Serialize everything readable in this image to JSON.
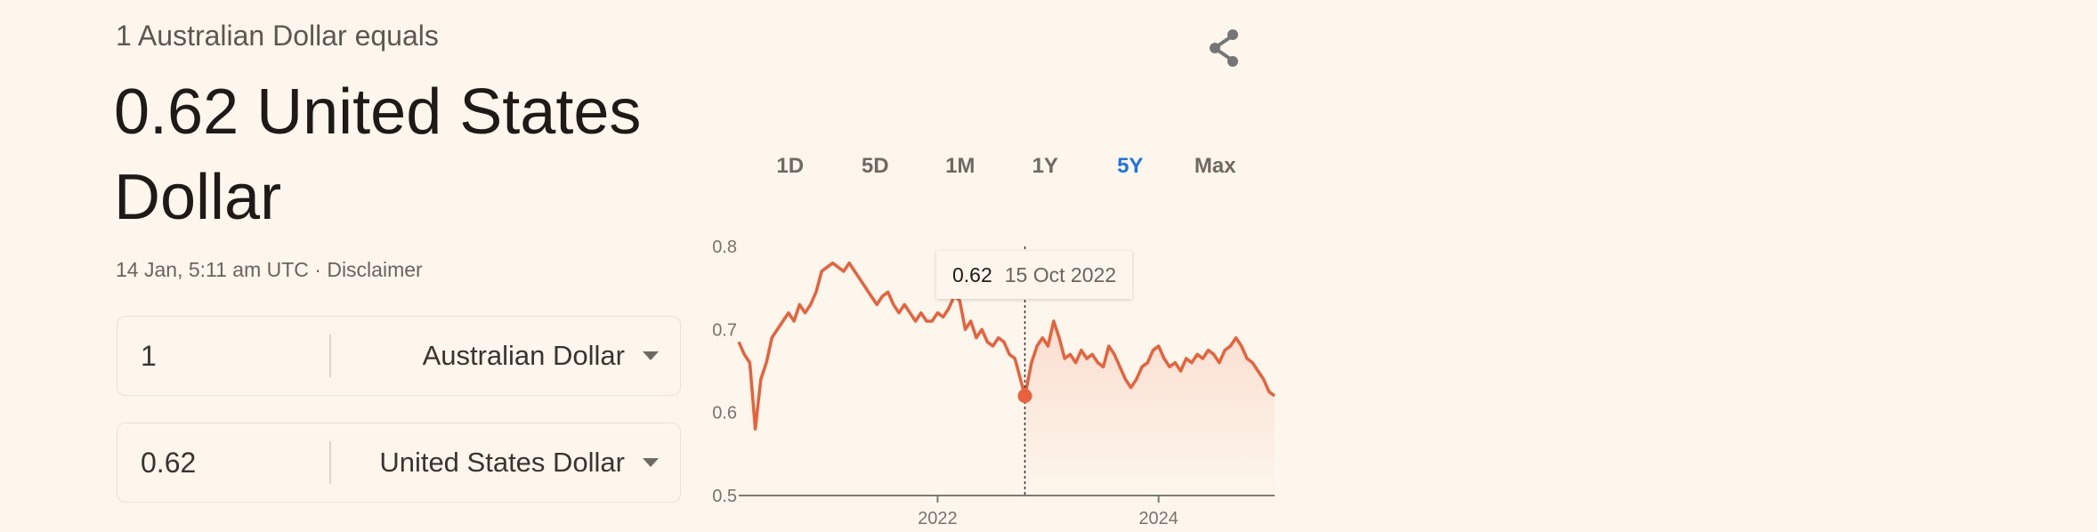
{
  "header": {
    "subtitle": "1 Australian Dollar equals",
    "rate_line": "0.62 United States Dollar",
    "timestamp": "14 Jan, 5:11 am UTC · Disclaimer"
  },
  "converter": {
    "from": {
      "amount": "1",
      "currency": "Australian Dollar"
    },
    "to": {
      "amount": "0.62",
      "currency": "United States Dollar"
    }
  },
  "share": {
    "icon": "share-icon"
  },
  "range_tabs": {
    "items": [
      "1D",
      "5D",
      "1M",
      "1Y",
      "5Y",
      "Max"
    ],
    "active": "5Y"
  },
  "tooltip": {
    "value": "0.62",
    "date": "15 Oct 2022"
  },
  "colors": {
    "line": "#e8613a",
    "active_tab": "#1a73e8",
    "background": "#fdf6ec"
  },
  "chart_data": {
    "type": "line",
    "y_ticks": [
      "0.8",
      "0.7",
      "0.6",
      "0.5"
    ],
    "x_ticks": [
      "2022",
      "2024"
    ],
    "x_tick_positions": [
      2022.0,
      2024.0
    ],
    "ylim": [
      0.5,
      0.8
    ],
    "xlim": [
      2020.2,
      2025.05
    ],
    "highlight": {
      "x": 2022.79,
      "y": 0.62
    },
    "series": [
      {
        "x": [
          2020.2,
          2020.25,
          2020.3,
          2020.35,
          2020.4,
          2020.45,
          2020.5,
          2020.55,
          2020.6,
          2020.65,
          2020.7,
          2020.75,
          2020.8,
          2020.85,
          2020.9,
          2020.95,
          2021.0,
          2021.05,
          2021.1,
          2021.15,
          2021.2,
          2021.25,
          2021.3,
          2021.35,
          2021.4,
          2021.45,
          2021.5,
          2021.55,
          2021.6,
          2021.65,
          2021.7,
          2021.75,
          2021.8,
          2021.85,
          2021.9,
          2021.95,
          2022.0,
          2022.05,
          2022.1,
          2022.15,
          2022.2,
          2022.25,
          2022.3,
          2022.35,
          2022.4,
          2022.45,
          2022.5,
          2022.55,
          2022.6,
          2022.65,
          2022.7,
          2022.75,
          2022.79,
          2022.85,
          2022.9,
          2022.95,
          2023.0,
          2023.05,
          2023.1,
          2023.15,
          2023.2,
          2023.25,
          2023.3,
          2023.35,
          2023.4,
          2023.45,
          2023.5,
          2023.55,
          2023.6,
          2023.65,
          2023.7,
          2023.75,
          2023.8,
          2023.85,
          2023.9,
          2023.95,
          2024.0,
          2024.05,
          2024.1,
          2024.15,
          2024.2,
          2024.25,
          2024.3,
          2024.35,
          2024.4,
          2024.45,
          2024.5,
          2024.55,
          2024.6,
          2024.65,
          2024.7,
          2024.75,
          2024.8,
          2024.85,
          2024.9,
          2024.95,
          2025.0,
          2025.05
        ],
        "y": [
          0.685,
          0.67,
          0.66,
          0.58,
          0.64,
          0.66,
          0.69,
          0.7,
          0.71,
          0.72,
          0.71,
          0.73,
          0.72,
          0.73,
          0.745,
          0.77,
          0.775,
          0.78,
          0.775,
          0.77,
          0.78,
          0.77,
          0.76,
          0.75,
          0.74,
          0.73,
          0.74,
          0.745,
          0.73,
          0.72,
          0.73,
          0.72,
          0.71,
          0.72,
          0.71,
          0.71,
          0.72,
          0.715,
          0.725,
          0.74,
          0.735,
          0.7,
          0.71,
          0.69,
          0.7,
          0.685,
          0.68,
          0.69,
          0.685,
          0.67,
          0.665,
          0.64,
          0.62,
          0.66,
          0.68,
          0.69,
          0.68,
          0.71,
          0.69,
          0.665,
          0.67,
          0.66,
          0.675,
          0.665,
          0.67,
          0.66,
          0.655,
          0.68,
          0.67,
          0.655,
          0.64,
          0.63,
          0.64,
          0.655,
          0.66,
          0.675,
          0.68,
          0.665,
          0.655,
          0.66,
          0.65,
          0.665,
          0.66,
          0.67,
          0.665,
          0.675,
          0.67,
          0.66,
          0.675,
          0.68,
          0.69,
          0.68,
          0.665,
          0.66,
          0.65,
          0.64,
          0.625,
          0.62
        ]
      }
    ]
  }
}
